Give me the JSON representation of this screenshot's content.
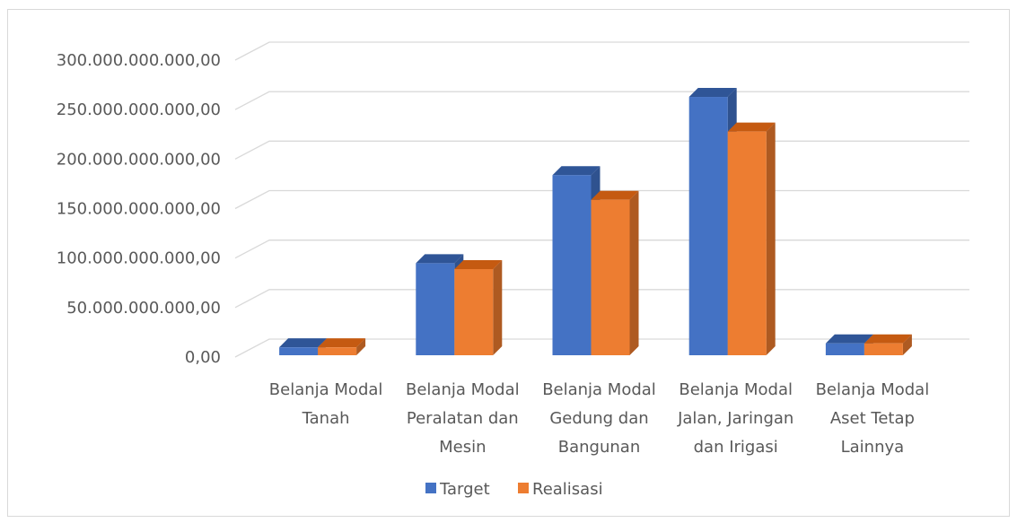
{
  "chart_data": {
    "type": "bar",
    "title": "",
    "xlabel": "",
    "ylabel": "",
    "categories": [
      [
        "Belanja Modal",
        "Tanah"
      ],
      [
        "Belanja Modal",
        "Peralatan dan",
        "Mesin"
      ],
      [
        "Belanja Modal",
        "Gedung dan",
        "Bangunan"
      ],
      [
        "Belanja Modal",
        "Jalan, Jaringan",
        "dan Irigasi"
      ],
      [
        "Belanja Modal",
        "Aset Tetap",
        "Lainnya"
      ]
    ],
    "series": [
      {
        "name": "Target",
        "color": "#4472c4",
        "side_color": "#2f528f",
        "top_color": "#2f5597",
        "values": [
          8000000000,
          93000000000,
          182000000000,
          261000000000,
          12000000000
        ]
      },
      {
        "name": "Realisasi",
        "color": "#ed7d31",
        "side_color": "#ae5a21",
        "top_color": "#c55a11",
        "values": [
          8000000000,
          87000000000,
          157000000000,
          226000000000,
          12000000000
        ]
      }
    ],
    "ylim": [
      0,
      300000000000
    ],
    "ytick_step": 50000000000,
    "ytick_labels": [
      "0,00",
      "50.000.000.000,00",
      "100.000.000.000,00",
      "150.000.000.000,00",
      "200.000.000.000,00",
      "250.000.000.000,00",
      "300.000.000.000,00"
    ],
    "grid": true,
    "legend": "bottom",
    "style": "3d-column"
  }
}
